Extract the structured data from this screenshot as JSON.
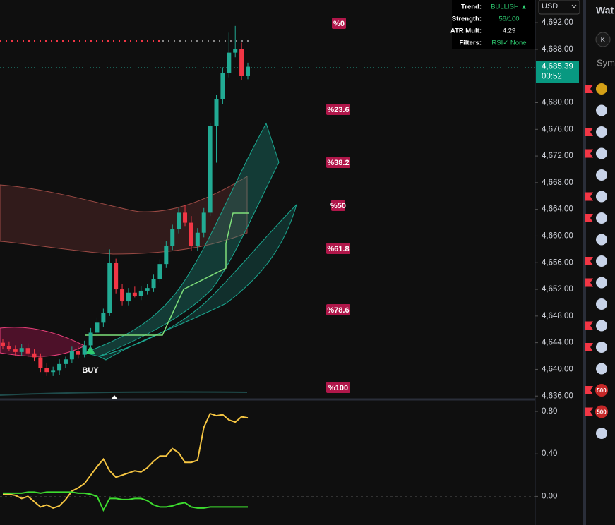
{
  "chart_data": [
    {
      "type": "candlestick",
      "open": [
        4644.0,
        4643.5,
        4643.0,
        4642.6,
        4643.2,
        4642.4,
        4641.8,
        4640.2,
        4639.6,
        4639.8,
        4640.8,
        4641.5,
        4642.8,
        4642.2,
        4643.6,
        4645.5,
        4647.0,
        4648.5,
        4656.0,
        4652.0,
        4650.2,
        4651.5,
        4651.0,
        4651.8,
        4652.2,
        4653.5,
        4655.8,
        4658.5,
        4661.0,
        4663.5,
        4662.0,
        4658.5,
        4660.5,
        4663.5,
        4676.5,
        4680.5,
        4684.5,
        4687.5,
        4688.0,
        4684.0
      ],
      "high": [
        4644.6,
        4644.2,
        4643.6,
        4643.8,
        4643.9,
        4643.0,
        4642.4,
        4640.9,
        4640.4,
        4641.5,
        4641.9,
        4643.4,
        4643.4,
        4644.3,
        4646.2,
        4647.8,
        4649.1,
        4658.0,
        4656.6,
        4652.8,
        4652.2,
        4652.4,
        4652.5,
        4652.8,
        4654.2,
        4656.5,
        4659.2,
        4661.7,
        4664.2,
        4664.6,
        4663.0,
        4661.2,
        4664.2,
        4677.0,
        4681.2,
        4685.3,
        4690.5,
        4691.5,
        4689.0,
        4686.0
      ],
      "low": [
        4643.0,
        4642.8,
        4642.0,
        4642.0,
        4641.8,
        4641.2,
        4639.6,
        4639.0,
        4639.0,
        4639.2,
        4640.2,
        4641.0,
        4641.6,
        4641.8,
        4643.0,
        4644.9,
        4646.4,
        4648.0,
        4651.4,
        4649.6,
        4649.6,
        4650.8,
        4650.4,
        4651.2,
        4651.6,
        4653.0,
        4655.2,
        4657.9,
        4660.4,
        4661.5,
        4657.8,
        4657.8,
        4659.8,
        4663.0,
        4671.0,
        4679.8,
        4683.8,
        4686.8,
        4683.4,
        4683.5
      ],
      "close": [
        4643.5,
        4643.0,
        4642.6,
        4643.2,
        4642.4,
        4641.8,
        4640.2,
        4639.6,
        4639.8,
        4640.8,
        4641.5,
        4642.8,
        4642.2,
        4643.6,
        4645.5,
        4647.0,
        4648.5,
        4656.0,
        4652.0,
        4650.2,
        4651.5,
        4651.0,
        4651.8,
        4652.2,
        4653.5,
        4655.8,
        4658.5,
        4661.0,
        4663.5,
        4662.0,
        4658.5,
        4660.5,
        4663.5,
        4676.5,
        4680.5,
        4684.5,
        4687.5,
        4688.0,
        4684.0,
        4685.39
      ],
      "up_color": "#22ab94",
      "down_color": "#f23645",
      "ylim": [
        4635.6,
        4695.4
      ],
      "yticks": [
        {
          "value": 4636,
          "label": "4,636.00"
        },
        {
          "value": 4640,
          "label": "4,640.00"
        },
        {
          "value": 4644,
          "label": "4,644.00"
        },
        {
          "value": 4648,
          "label": "4,648.00"
        },
        {
          "value": 4652,
          "label": "4,652.00"
        },
        {
          "value": 4656,
          "label": "4,656.00"
        },
        {
          "value": 4660,
          "label": "4,660.00"
        },
        {
          "value": 4664,
          "label": "4,664.00"
        },
        {
          "value": 4668,
          "label": "4,668.00"
        },
        {
          "value": 4672,
          "label": "4,672.00"
        },
        {
          "value": 4676,
          "label": "4,676.00"
        },
        {
          "value": 4680,
          "label": "4,680.00"
        },
        {
          "value": 4688,
          "label": "4,688.00"
        },
        {
          "value": 4692,
          "label": "4,692.00"
        }
      ],
      "last_price": {
        "value": 4685.39,
        "label": "4,685.39"
      },
      "countdown": "00:52"
    },
    {
      "type": "line",
      "series": [
        {
          "color": "#f5c542",
          "values": [
            0.02,
            0.02,
            0.01,
            -0.02,
            0.0,
            -0.05,
            -0.1,
            -0.08,
            -0.11,
            -0.09,
            -0.03,
            0.05,
            0.08,
            0.12,
            0.2,
            0.28,
            0.35,
            0.24,
            0.18,
            0.2,
            0.22,
            0.24,
            0.23,
            0.27,
            0.33,
            0.38,
            0.38,
            0.45,
            0.41,
            0.32,
            0.32,
            0.34,
            0.65,
            0.78,
            0.76,
            0.77,
            0.72,
            0.7,
            0.75,
            0.74
          ]
        },
        {
          "color": "#3ddc2f",
          "values": [
            0.03,
            0.03,
            0.03,
            0.03,
            0.04,
            0.04,
            0.03,
            0.04,
            0.04,
            0.04,
            0.04,
            0.04,
            0.03,
            0.03,
            0.02,
            0.0,
            -0.13,
            -0.02,
            -0.02,
            -0.03,
            -0.03,
            -0.02,
            -0.02,
            -0.04,
            -0.08,
            -0.1,
            -0.1,
            -0.09,
            -0.07,
            -0.06,
            -0.1,
            -0.11,
            -0.11,
            -0.1,
            -0.1,
            -0.1,
            -0.1,
            -0.1,
            -0.1,
            -0.1
          ]
        }
      ],
      "ylim": [
        -0.27,
        0.9
      ],
      "yticks": [
        {
          "value": 0.8,
          "label": "0.80"
        },
        {
          "value": 0.4,
          "label": "0.40"
        },
        {
          "value": 0,
          "label": "0.00"
        }
      ]
    }
  ],
  "info_panel": {
    "rows": [
      [
        "Trend:",
        "BULLISH ▲"
      ],
      [
        "Strength:",
        "58/100"
      ],
      [
        "ATR Mult:",
        "4.29"
      ],
      [
        "Filters:",
        "RSI✓ None"
      ]
    ]
  },
  "fib_labels": [
    "%0",
    "%23.6",
    "%38.2",
    "%50",
    "%61.8",
    "%78.6",
    "%100"
  ],
  "signal_label": "BUY",
  "currency": "USD",
  "watchlist": {
    "title": "Wat",
    "button": "K",
    "column": "Sym",
    "badges": [
      "500",
      "500"
    ]
  }
}
